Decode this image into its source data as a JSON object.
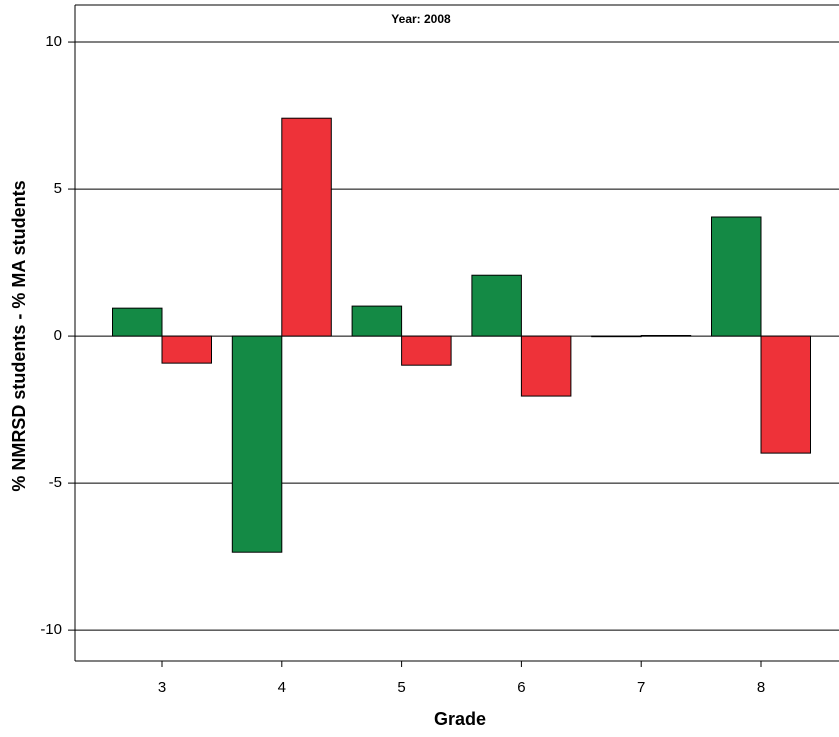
{
  "chart_data": {
    "type": "bar",
    "title": "Year: 2008",
    "x_label": "Grade",
    "y_label": "% NMRSD students - % MA students",
    "categories": [
      "3",
      "4",
      "5",
      "6",
      "7",
      "8"
    ],
    "series": [
      {
        "color": "#148a45",
        "values": [
          0.95,
          -7.35,
          1.02,
          2.07,
          -0.02,
          4.05
        ]
      },
      {
        "color": "#ee3239",
        "values": [
          -0.92,
          7.41,
          -0.99,
          -2.04,
          0.02,
          -3.98
        ]
      }
    ],
    "ylim": [
      -11.05,
      11.26
    ],
    "yticks": [
      -10,
      -5,
      0,
      5,
      10
    ],
    "grid": true
  }
}
